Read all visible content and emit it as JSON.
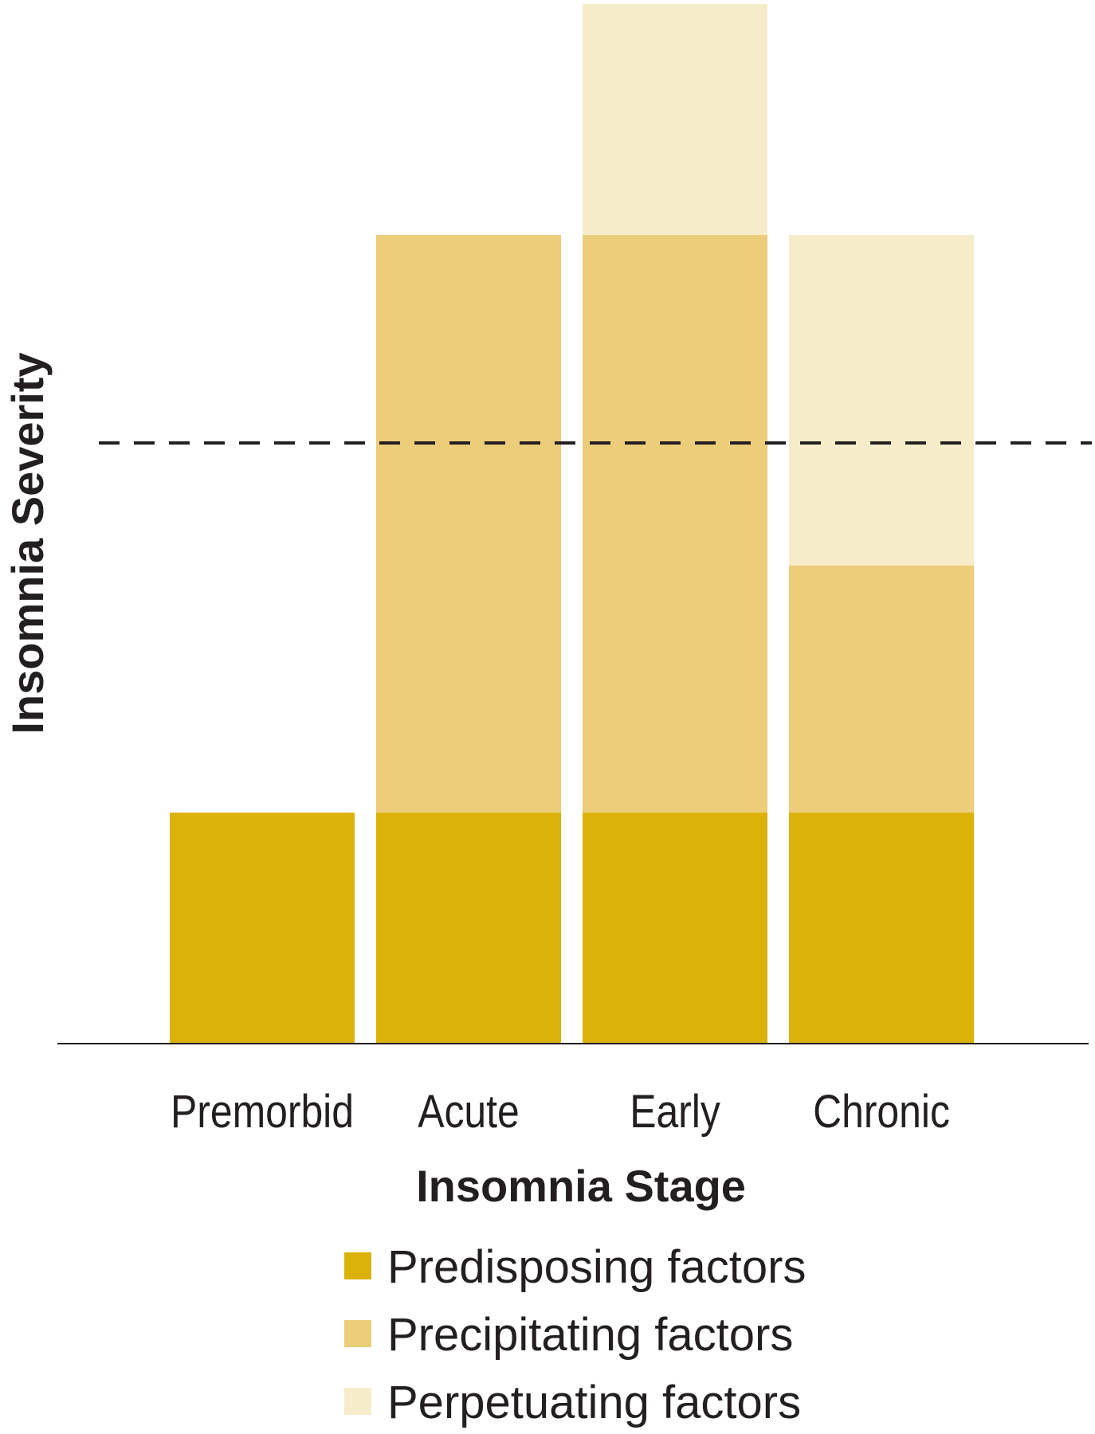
{
  "chart_data": {
    "type": "bar",
    "stacked": true,
    "title": "",
    "xlabel": "Insomnia Stage",
    "ylabel": "Insomnia Severity",
    "categories": [
      "Premorbid",
      "Acute",
      "Early",
      "Chronic"
    ],
    "series": [
      {
        "name": "Predisposing factors",
        "color": "#dbb20a",
        "values": [
          2.0,
          2.0,
          2.0,
          2.0
        ]
      },
      {
        "name": "Precipitating factors",
        "color": "#eccd79",
        "values": [
          0,
          5.0,
          5.0,
          2.14
        ]
      },
      {
        "name": "Perpetuating factors",
        "color": "#f6ecca",
        "values": [
          0,
          0,
          2.0,
          2.86
        ]
      }
    ],
    "threshold": {
      "value": 5.2,
      "style": "dashed"
    },
    "ylim": [
      0,
      9.0
    ],
    "grid": false,
    "legend_position": "bottom"
  }
}
